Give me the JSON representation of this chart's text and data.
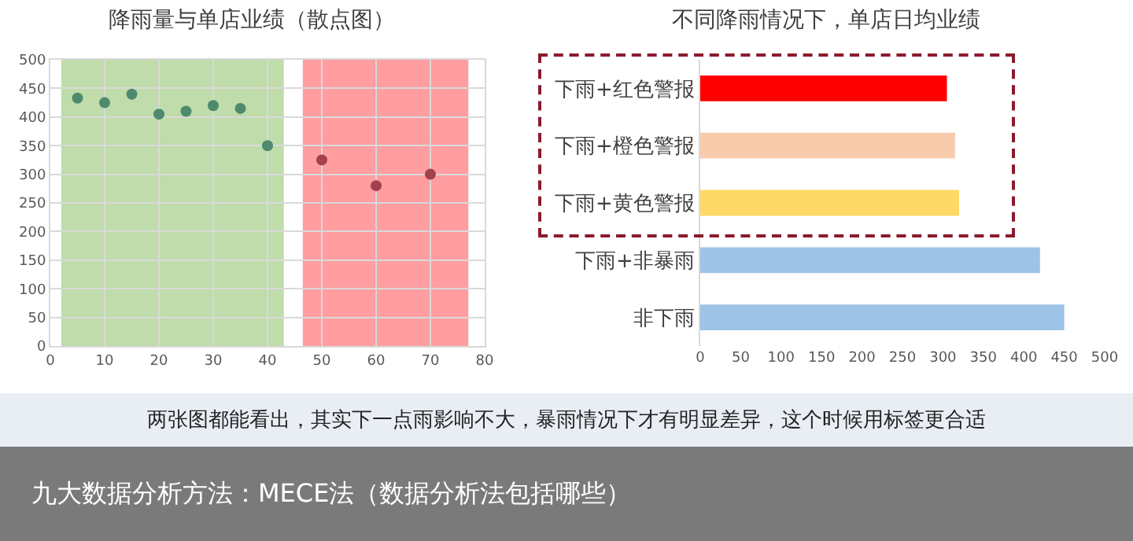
{
  "chart_data": [
    {
      "type": "scatter",
      "title": "降雨量与单店业绩（散点图）",
      "x": [
        5,
        10,
        15,
        20,
        25,
        30,
        35,
        40,
        50,
        60,
        70
      ],
      "values": [
        433,
        425,
        440,
        405,
        410,
        420,
        415,
        350,
        325,
        280,
        300
      ],
      "colors": [
        "#4e8a6e",
        "#4e8a6e",
        "#4e8a6e",
        "#4e8a6e",
        "#4e8a6e",
        "#4e8a6e",
        "#4e8a6e",
        "#4e8a6e",
        "#a3414f",
        "#a3414f",
        "#a3414f"
      ],
      "xlim": [
        0,
        80
      ],
      "xticks": [
        0,
        10,
        20,
        30,
        40,
        50,
        60,
        70,
        80
      ],
      "ylim": [
        0,
        500
      ],
      "yticks": [
        0,
        50,
        100,
        150,
        200,
        250,
        300,
        350,
        400,
        450,
        500
      ],
      "bands": [
        {
          "axis": "x",
          "from": 2,
          "to": 43,
          "color": "#a9d08e"
        },
        {
          "axis": "x",
          "from": 46.5,
          "to": 77,
          "color": "#ff7c80"
        }
      ],
      "grid": true,
      "marker": "circle",
      "legend": false,
      "annotations": [
        "两张图都能看出，其实下一点雨影响不大，暴雨情况下才有明显差异，这个时候用标签更合适",
        "九大数据分析方法：MECE法（数据分析法包括哪些）"
      ]
    },
    {
      "type": "bar",
      "orientation": "horizontal",
      "title": "不同降雨情况下，单店日均业绩",
      "categories": [
        "下雨+红色警报",
        "下雨+橙色警报",
        "下雨+黄色警报",
        "下雨+非暴雨",
        "非下雨"
      ],
      "values": [
        305,
        315,
        320,
        420,
        450
      ],
      "colors": [
        "#ff0000",
        "#f8cbad",
        "#ffd966",
        "#9dc3e6",
        "#9dc3e6"
      ],
      "xlim": [
        0,
        500
      ],
      "xticks": [
        0,
        50,
        100,
        150,
        200,
        250,
        300,
        350,
        400,
        450,
        500
      ],
      "grid": false,
      "legend": false
    }
  ]
}
